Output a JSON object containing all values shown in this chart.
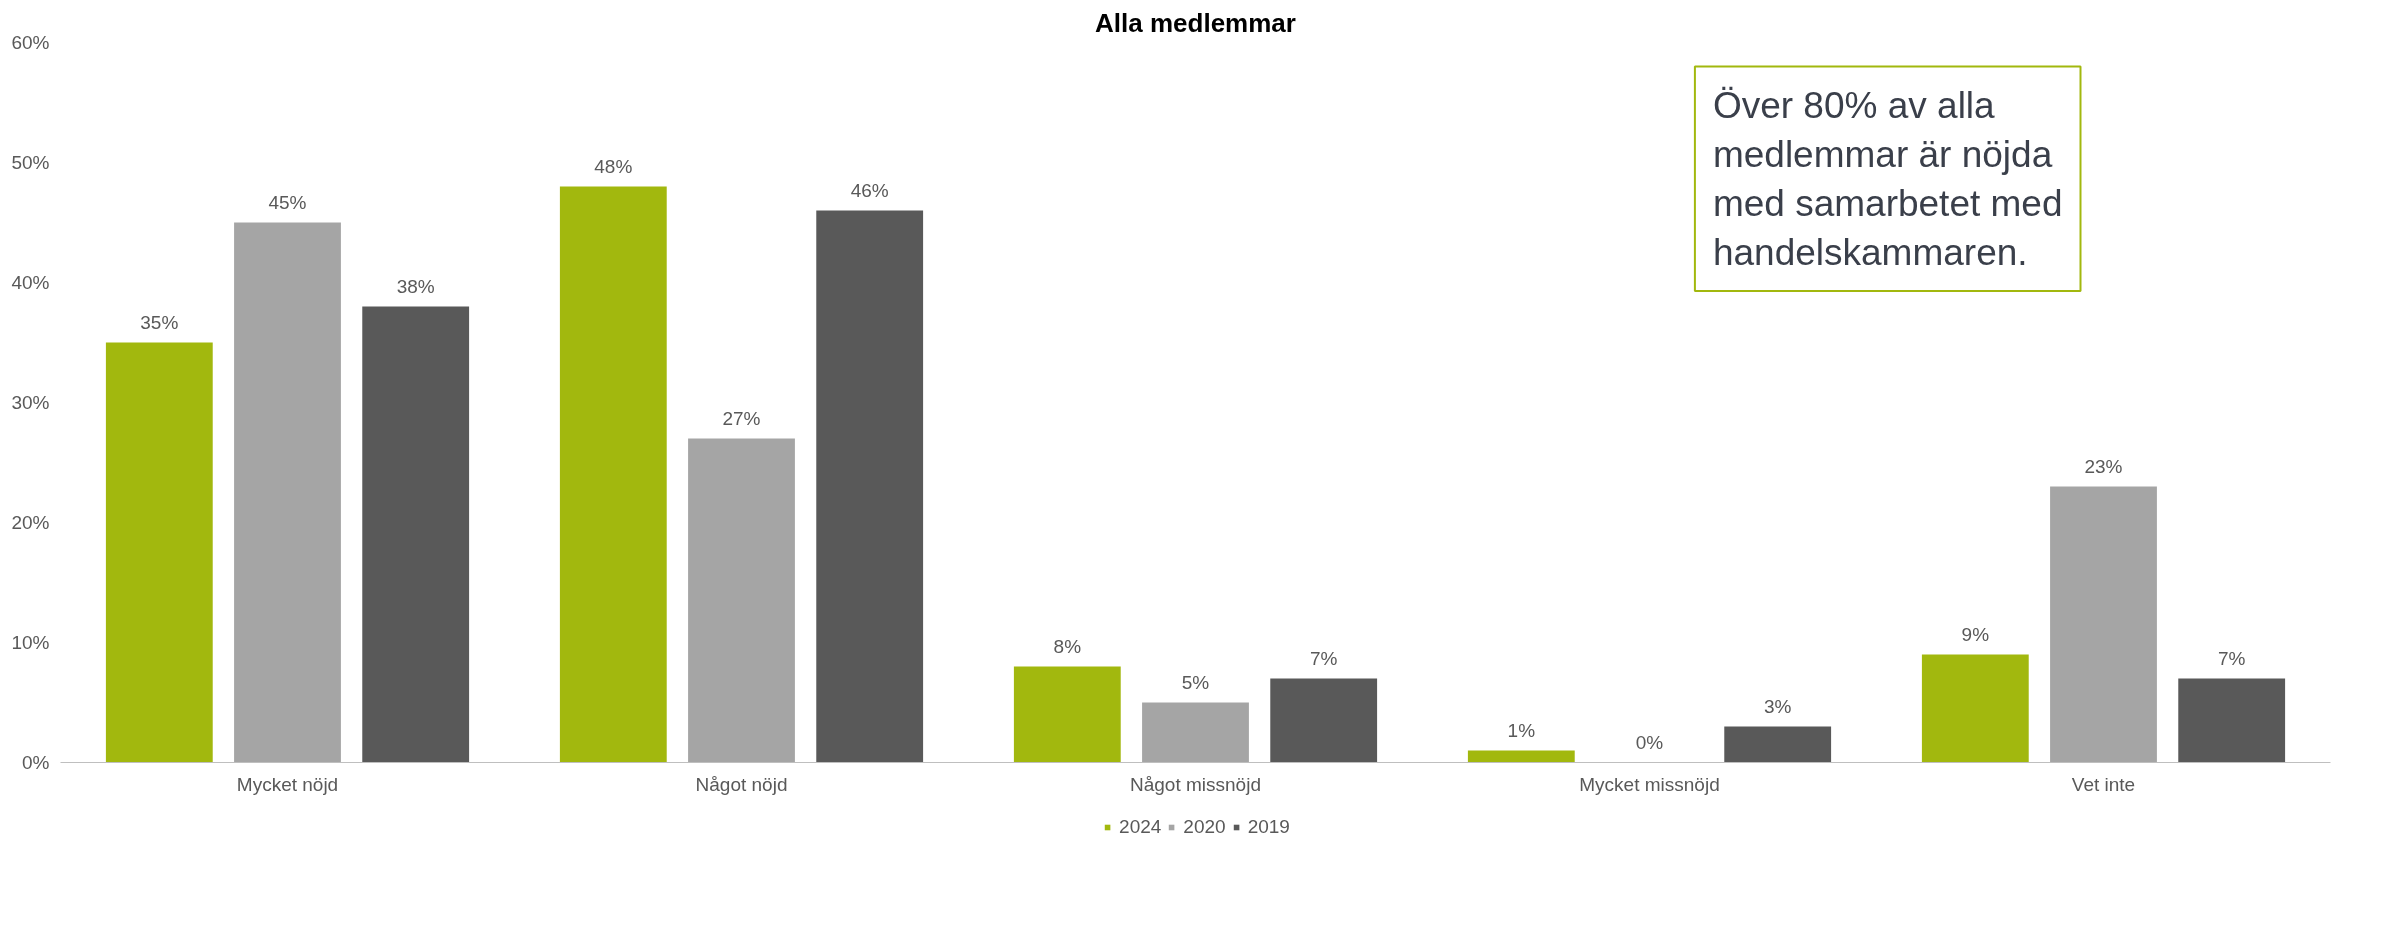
{
  "chart_data": {
    "type": "bar",
    "title": "Alla medlemmar",
    "categories": [
      "Mycket nöjd",
      "Något nöjd",
      "Något missnöjd",
      "Mycket missnöjd",
      "Vet inte"
    ],
    "series": [
      {
        "name": "2024",
        "color": "#a2b80e",
        "values": [
          35,
          48,
          8,
          1,
          9
        ]
      },
      {
        "name": "2020",
        "color": "#a5a5a5",
        "values": [
          45,
          27,
          5,
          0,
          23
        ]
      },
      {
        "name": "2019",
        "color": "#595959",
        "values": [
          38,
          46,
          7,
          3,
          7
        ]
      }
    ],
    "ylim": [
      0,
      60
    ],
    "yticks": [
      {
        "value": 0,
        "label": "0%"
      },
      {
        "value": 10,
        "label": "10%"
      },
      {
        "value": 20,
        "label": "20%"
      },
      {
        "value": 30,
        "label": "30%"
      },
      {
        "value": 40,
        "label": "40%"
      },
      {
        "value": 50,
        "label": "50%"
      },
      {
        "value": 60,
        "label": "60%"
      }
    ],
    "value_labels": [
      [
        "35%",
        "48%",
        "8%",
        "1%",
        "9%"
      ],
      [
        "45%",
        "27%",
        "5%",
        "0%",
        "23%"
      ],
      [
        "38%",
        "46%",
        "7%",
        "3%",
        "7%"
      ]
    ],
    "annotations": [
      "Över 80% av alla medlemmar är nöjda med samarbetet med handelskammaren."
    ],
    "grid": false,
    "legend": "bottom"
  }
}
